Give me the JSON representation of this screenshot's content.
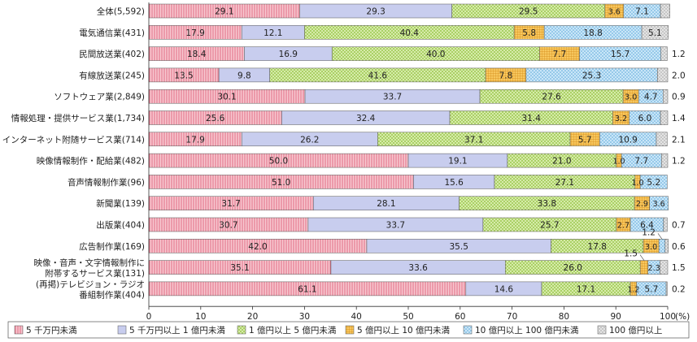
{
  "chart_data": {
    "type": "bar",
    "orientation": "horizontal",
    "stacked": true,
    "categories": [
      "全体(5,592)",
      "電気通信業(431)",
      "民間放送業(402)",
      "有線放送業(245)",
      "ソフトウェア業(2,849)",
      "情報処理・提供サービス業(1,734)",
      "インターネット附随サービス業(714)",
      "映像情報制作・配給業(482)",
      "音声情報制作業(96)",
      "新聞業(139)",
      "出版業(404)",
      "広告制作業(169)",
      "映像・音声・文字情報制作に附帯するサービス業(131)",
      "(再掲)テレビジョン・ラジオ番組制作業(404)"
    ],
    "category_lines": [
      [
        "全体(5,592)"
      ],
      [
        "電気通信業(431)"
      ],
      [
        "民間放送業(402)"
      ],
      [
        "有線放送業(245)"
      ],
      [
        "ソフトウェア業(2,849)"
      ],
      [
        "情報処理・提供サービス業(1,734)"
      ],
      [
        "インターネット附随サービス業(714)"
      ],
      [
        "映像情報制作・配給業(482)"
      ],
      [
        "音声情報制作業(96)"
      ],
      [
        "新聞業(139)"
      ],
      [
        "出版業(404)"
      ],
      [
        "広告制作業(169)"
      ],
      [
        "映像・音声・文字情報制作に",
        "附帯するサービス業(131)"
      ],
      [
        "(再掲)テレビジョン・ラジオ",
        "番組制作業(404)"
      ]
    ],
    "series": [
      {
        "name": "5 千万円未満",
        "color": "#f2a9b5",
        "pattern": "vertical-lines",
        "values": [
          29.1,
          17.9,
          18.4,
          13.5,
          30.1,
          25.6,
          17.9,
          50.0,
          51.0,
          31.7,
          30.7,
          42.0,
          35.1,
          61.1
        ]
      },
      {
        "name": "5 千万円以上 1 億円未満",
        "color": "#c8cdee",
        "pattern": "solid",
        "values": [
          29.3,
          12.1,
          16.9,
          9.8,
          33.7,
          32.4,
          26.2,
          19.1,
          15.6,
          28.1,
          33.7,
          35.5,
          33.6,
          14.6
        ]
      },
      {
        "name": "1 億円以上 5 億円未満",
        "color": "#d6eba8",
        "pattern": "crosshatch",
        "values": [
          29.5,
          40.4,
          40.0,
          41.6,
          27.6,
          31.4,
          37.1,
          21.0,
          27.1,
          33.8,
          25.7,
          17.8,
          26.0,
          17.1
        ]
      },
      {
        "name": "5 億円以上 10 億円未満",
        "color": "#f5c25a",
        "pattern": "grid",
        "values": [
          3.6,
          5.8,
          7.7,
          7.8,
          3.0,
          3.2,
          5.7,
          1.0,
          1.0,
          2.9,
          2.7,
          3.0,
          1.5,
          1.2
        ]
      },
      {
        "name": "10 億円以上 100 億円未満",
        "color": "#bfe1f7",
        "pattern": "dots",
        "values": [
          7.1,
          18.8,
          15.7,
          25.3,
          4.7,
          6.0,
          10.9,
          7.7,
          5.2,
          3.6,
          6.4,
          1.2,
          2.3,
          5.7
        ]
      },
      {
        "name": "100 億円以上",
        "color": "#dadada",
        "pattern": "dots-gray",
        "values": [
          1.8,
          5.1,
          1.2,
          2.0,
          0.9,
          1.4,
          2.1,
          1.2,
          0,
          0,
          0.7,
          0.6,
          1.5,
          0.2
        ]
      }
    ],
    "data_labels": [
      [
        "29.1",
        "29.3",
        "29.5",
        "3.6",
        "7.1",
        ""
      ],
      [
        "17.9",
        "12.1",
        "40.4",
        "5.8",
        "18.8",
        "5.1"
      ],
      [
        "18.4",
        "16.9",
        "40.0",
        "7.7",
        "15.7",
        ""
      ],
      [
        "13.5",
        "9.8",
        "41.6",
        "7.8",
        "25.3",
        ""
      ],
      [
        "30.1",
        "33.7",
        "27.6",
        "3.0",
        "4.7",
        ""
      ],
      [
        "25.6",
        "32.4",
        "31.4",
        "3.2",
        "6.0",
        ""
      ],
      [
        "17.9",
        "26.2",
        "37.1",
        "5.7",
        "10.9",
        ""
      ],
      [
        "50.0",
        "19.1",
        "21.0",
        "1.0",
        "7.7",
        ""
      ],
      [
        "51.0",
        "15.6",
        "27.1",
        "1.0",
        "5.2",
        ""
      ],
      [
        "31.7",
        "28.1",
        "33.8",
        "2.9",
        "3.6",
        ""
      ],
      [
        "30.7",
        "33.7",
        "25.7",
        "2.7",
        "6.4",
        ""
      ],
      [
        "42.0",
        "35.5",
        "17.8",
        "3.0",
        "",
        ""
      ],
      [
        "35.1",
        "33.6",
        "26.0",
        "",
        "2.3",
        ""
      ],
      [
        "61.1",
        "14.6",
        "17.1",
        "1.2",
        "5.7",
        ""
      ]
    ],
    "outside_labels": [
      "",
      "",
      "1.2",
      "2.0",
      "0.9",
      "1.4",
      "2.1",
      "1.2",
      "",
      "",
      "0.7",
      "0.6",
      "1.5",
      "0.2"
    ],
    "callouts": [
      {
        "row": 11,
        "series": 4,
        "label": "1.2"
      },
      {
        "row": 12,
        "series": 3,
        "label": "1.5"
      }
    ],
    "x_ticks": [
      "0",
      "10",
      "20",
      "30",
      "40",
      "50",
      "60",
      "70",
      "80",
      "90",
      "100"
    ],
    "x_unit": "(%)",
    "xlim": [
      0,
      100
    ],
    "legend_position": "bottom",
    "grid": false
  }
}
